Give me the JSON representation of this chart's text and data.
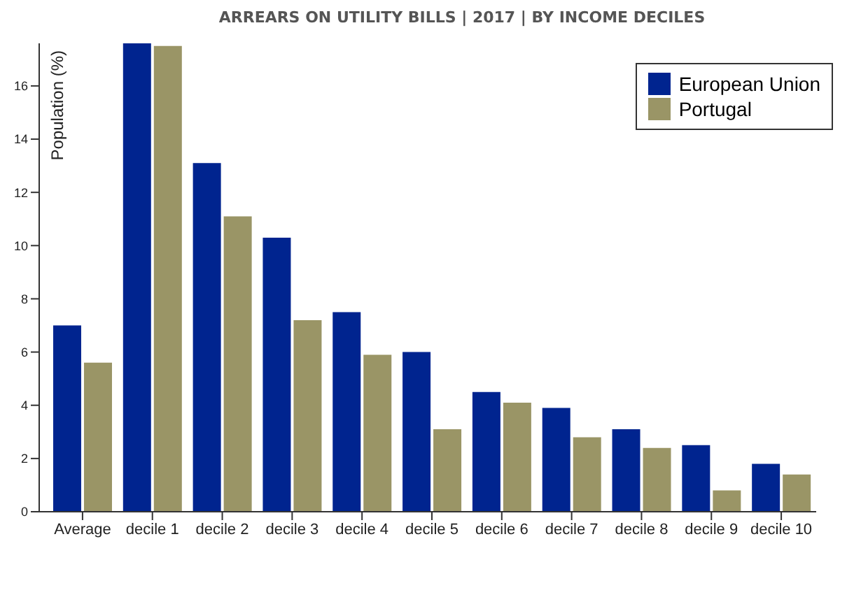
{
  "chart_data": {
    "type": "bar",
    "title": "ARREARS ON UTILITY BILLS | 2017 | BY INCOME DECILES",
    "ylabel": "Population (%)",
    "categories": [
      "Average",
      "decile 1",
      "decile 2",
      "decile 3",
      "decile 4",
      "decile 5",
      "decile 6",
      "decile 7",
      "decile 8",
      "decile 9",
      "decile 10"
    ],
    "series": [
      {
        "name": "European Union",
        "color": "#00248f",
        "values": [
          7.0,
          17.6,
          13.1,
          10.3,
          7.5,
          6.0,
          4.5,
          3.9,
          3.1,
          2.5,
          1.8
        ]
      },
      {
        "name": "Portugal",
        "color": "#9a9566",
        "values": [
          5.6,
          17.5,
          11.1,
          7.2,
          5.9,
          3.1,
          4.1,
          2.8,
          2.4,
          0.8,
          1.4
        ]
      }
    ],
    "ylim": [
      0,
      17.6
    ],
    "yticks": [
      0,
      2,
      4,
      6,
      8,
      10,
      12,
      14,
      16
    ],
    "legend": "top right"
  }
}
